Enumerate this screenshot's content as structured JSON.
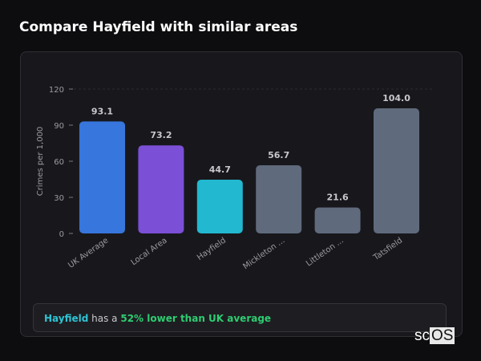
{
  "title": "Compare Hayfield with similar areas",
  "chart_data": {
    "type": "bar",
    "ylabel": "Crimes per 1,000",
    "ylim": [
      0,
      120
    ],
    "yticks": [
      0,
      30,
      60,
      90,
      120
    ],
    "categories": [
      "UK Average",
      "Local Area",
      "Hayfield",
      "Mickleton ...",
      "Littleton ...",
      "Tatsfield"
    ],
    "values": [
      93.1,
      73.2,
      44.7,
      56.7,
      21.6,
      104.0
    ],
    "labels": [
      "93.1",
      "73.2",
      "44.7",
      "56.7",
      "21.6",
      "104.0"
    ],
    "colors": [
      "#3776dc",
      "#7b4fd6",
      "#22b8d0",
      "#5f6a7c",
      "#5f6a7c",
      "#5f6a7c"
    ],
    "grid": false
  },
  "note": {
    "subject": "Hayfield",
    "middle": " has a ",
    "highlight": "52% lower than UK average"
  },
  "logo": {
    "text": "scOS"
  }
}
